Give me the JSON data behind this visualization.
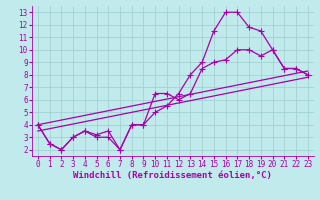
{
  "xlabel": "Windchill (Refroidissement éolien,°C)",
  "xlim": [
    -0.5,
    23.5
  ],
  "ylim": [
    1.5,
    13.5
  ],
  "xticks": [
    0,
    1,
    2,
    3,
    4,
    5,
    6,
    7,
    8,
    9,
    10,
    11,
    12,
    13,
    14,
    15,
    16,
    17,
    18,
    19,
    20,
    21,
    22,
    23
  ],
  "yticks": [
    2,
    3,
    4,
    5,
    6,
    7,
    8,
    9,
    10,
    11,
    12,
    13
  ],
  "bg_color": "#c0eaec",
  "line_color": "#aa00aa",
  "grid_color": "#9ecece",
  "line1_x": [
    0,
    1,
    2,
    3,
    4,
    5,
    6,
    7,
    8,
    9,
    10,
    11,
    12,
    13,
    14,
    15,
    16,
    17,
    18,
    19,
    20,
    21,
    22,
    23
  ],
  "line1_y": [
    4,
    2.5,
    2,
    3,
    3.5,
    3,
    3,
    2,
    4,
    4,
    5,
    5.5,
    6.5,
    8,
    9,
    11.5,
    13,
    13,
    11.8,
    11.5,
    10,
    8.5,
    8.5,
    8
  ],
  "line2_x": [
    0,
    1,
    2,
    3,
    4,
    5,
    6,
    7,
    8,
    9,
    10,
    11,
    12,
    13,
    14,
    15,
    16,
    17,
    18,
    19,
    20,
    21,
    22,
    23
  ],
  "line2_y": [
    4,
    2.5,
    2,
    3,
    3.5,
    3.2,
    3.5,
    2.0,
    4,
    4,
    6.5,
    6.5,
    6,
    6.5,
    8.5,
    9,
    9.2,
    10,
    10,
    9.5,
    10,
    8.5,
    8.5,
    8
  ],
  "line3_x": [
    0,
    23
  ],
  "line3_y": [
    4,
    8.3
  ],
  "line4_x": [
    0,
    23
  ],
  "line4_y": [
    3.5,
    7.8
  ],
  "marker": "+",
  "markersize": 4,
  "linewidth": 0.9,
  "tick_fontsize": 5.5,
  "label_fontsize": 6.5
}
